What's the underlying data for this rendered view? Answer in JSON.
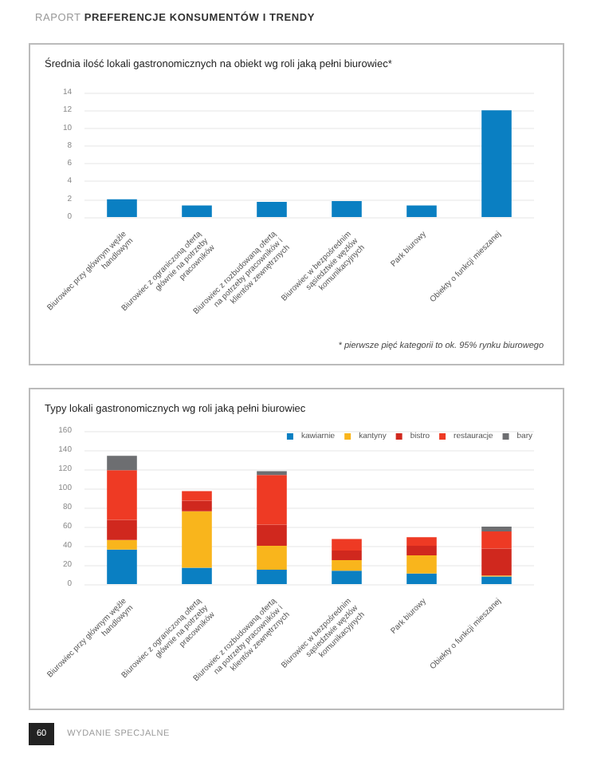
{
  "chart_data": [
    {
      "type": "bar",
      "title": "Średnia ilość lokali gastronomicznych na obiekt wg roli jaką pełni biurowiec*",
      "categories": [
        "Biurowiec przy głównym węźle handlowym",
        "Biurowiec z ograniczoną ofertą głównie na potrzeby pracowników",
        "Biurowiec z rozbudowaną ofertą na potrzeby pracowników i klientów zewnętrznych",
        "Biurowiec w bezpośrednim sąsiedztwie węzłów komunikacyjnych",
        "Park biurowy",
        "Obiekty o funkcji mieszanej"
      ],
      "values": [
        2.0,
        1.3,
        1.7,
        1.8,
        1.3,
        12
      ],
      "color": "#0a7fc2",
      "ylim": [
        0,
        14
      ],
      "yticks": [
        0,
        2,
        4,
        6,
        8,
        10,
        12,
        14
      ],
      "grid": "y",
      "legend": false,
      "annotations": [
        "RAPORT PREFERENCJE KONSUMENTÓW I TRENDY",
        "* pierwsze pięć kategorii to ok. 95% rynku biurowego"
      ]
    },
    {
      "type": "bar",
      "title": "Typy lokali gastronomicznych wg roli jaką pełni biurowiec",
      "stacked": true,
      "categories": [
        "Biurowiec przy głównym węźle handlowym",
        "Biurowiec z ograniczoną ofertą głównie na potrzeby pracowników",
        "Biurowiec z rozbudowaną ofertą na potrzeby pracowników i klientów zewnętrznych",
        "Biurowiec w bezpośrednim sąsiedztwie węzłów komunikacyjnych",
        "Park biurowy",
        "Obiekty o funkcji mieszanej"
      ],
      "series": [
        {
          "name": "kawiarnie",
          "color": "#0a7fc2",
          "values": [
            36,
            17,
            15,
            14,
            11,
            8
          ]
        },
        {
          "name": "kantyny",
          "color": "#f9b51c",
          "values": [
            10,
            59,
            25,
            11,
            19,
            1
          ]
        },
        {
          "name": "bistro",
          "color": "#d0281e",
          "values": [
            21,
            11,
            22,
            10,
            10,
            28
          ]
        },
        {
          "name": "restauracje",
          "color": "#ee3a24",
          "values": [
            52,
            10,
            52,
            12,
            9,
            18
          ]
        },
        {
          "name": "bary",
          "color": "#6d6e71",
          "values": [
            15,
            0,
            4,
            0,
            0,
            5
          ]
        }
      ],
      "ylim": [
        0,
        160
      ],
      "yticks": [
        0,
        20,
        40,
        60,
        80,
        100,
        120,
        140,
        160
      ],
      "grid": "y",
      "legend": "top right",
      "annotations": [
        "60",
        "WYDANIE SPECJALNE"
      ]
    }
  ]
}
